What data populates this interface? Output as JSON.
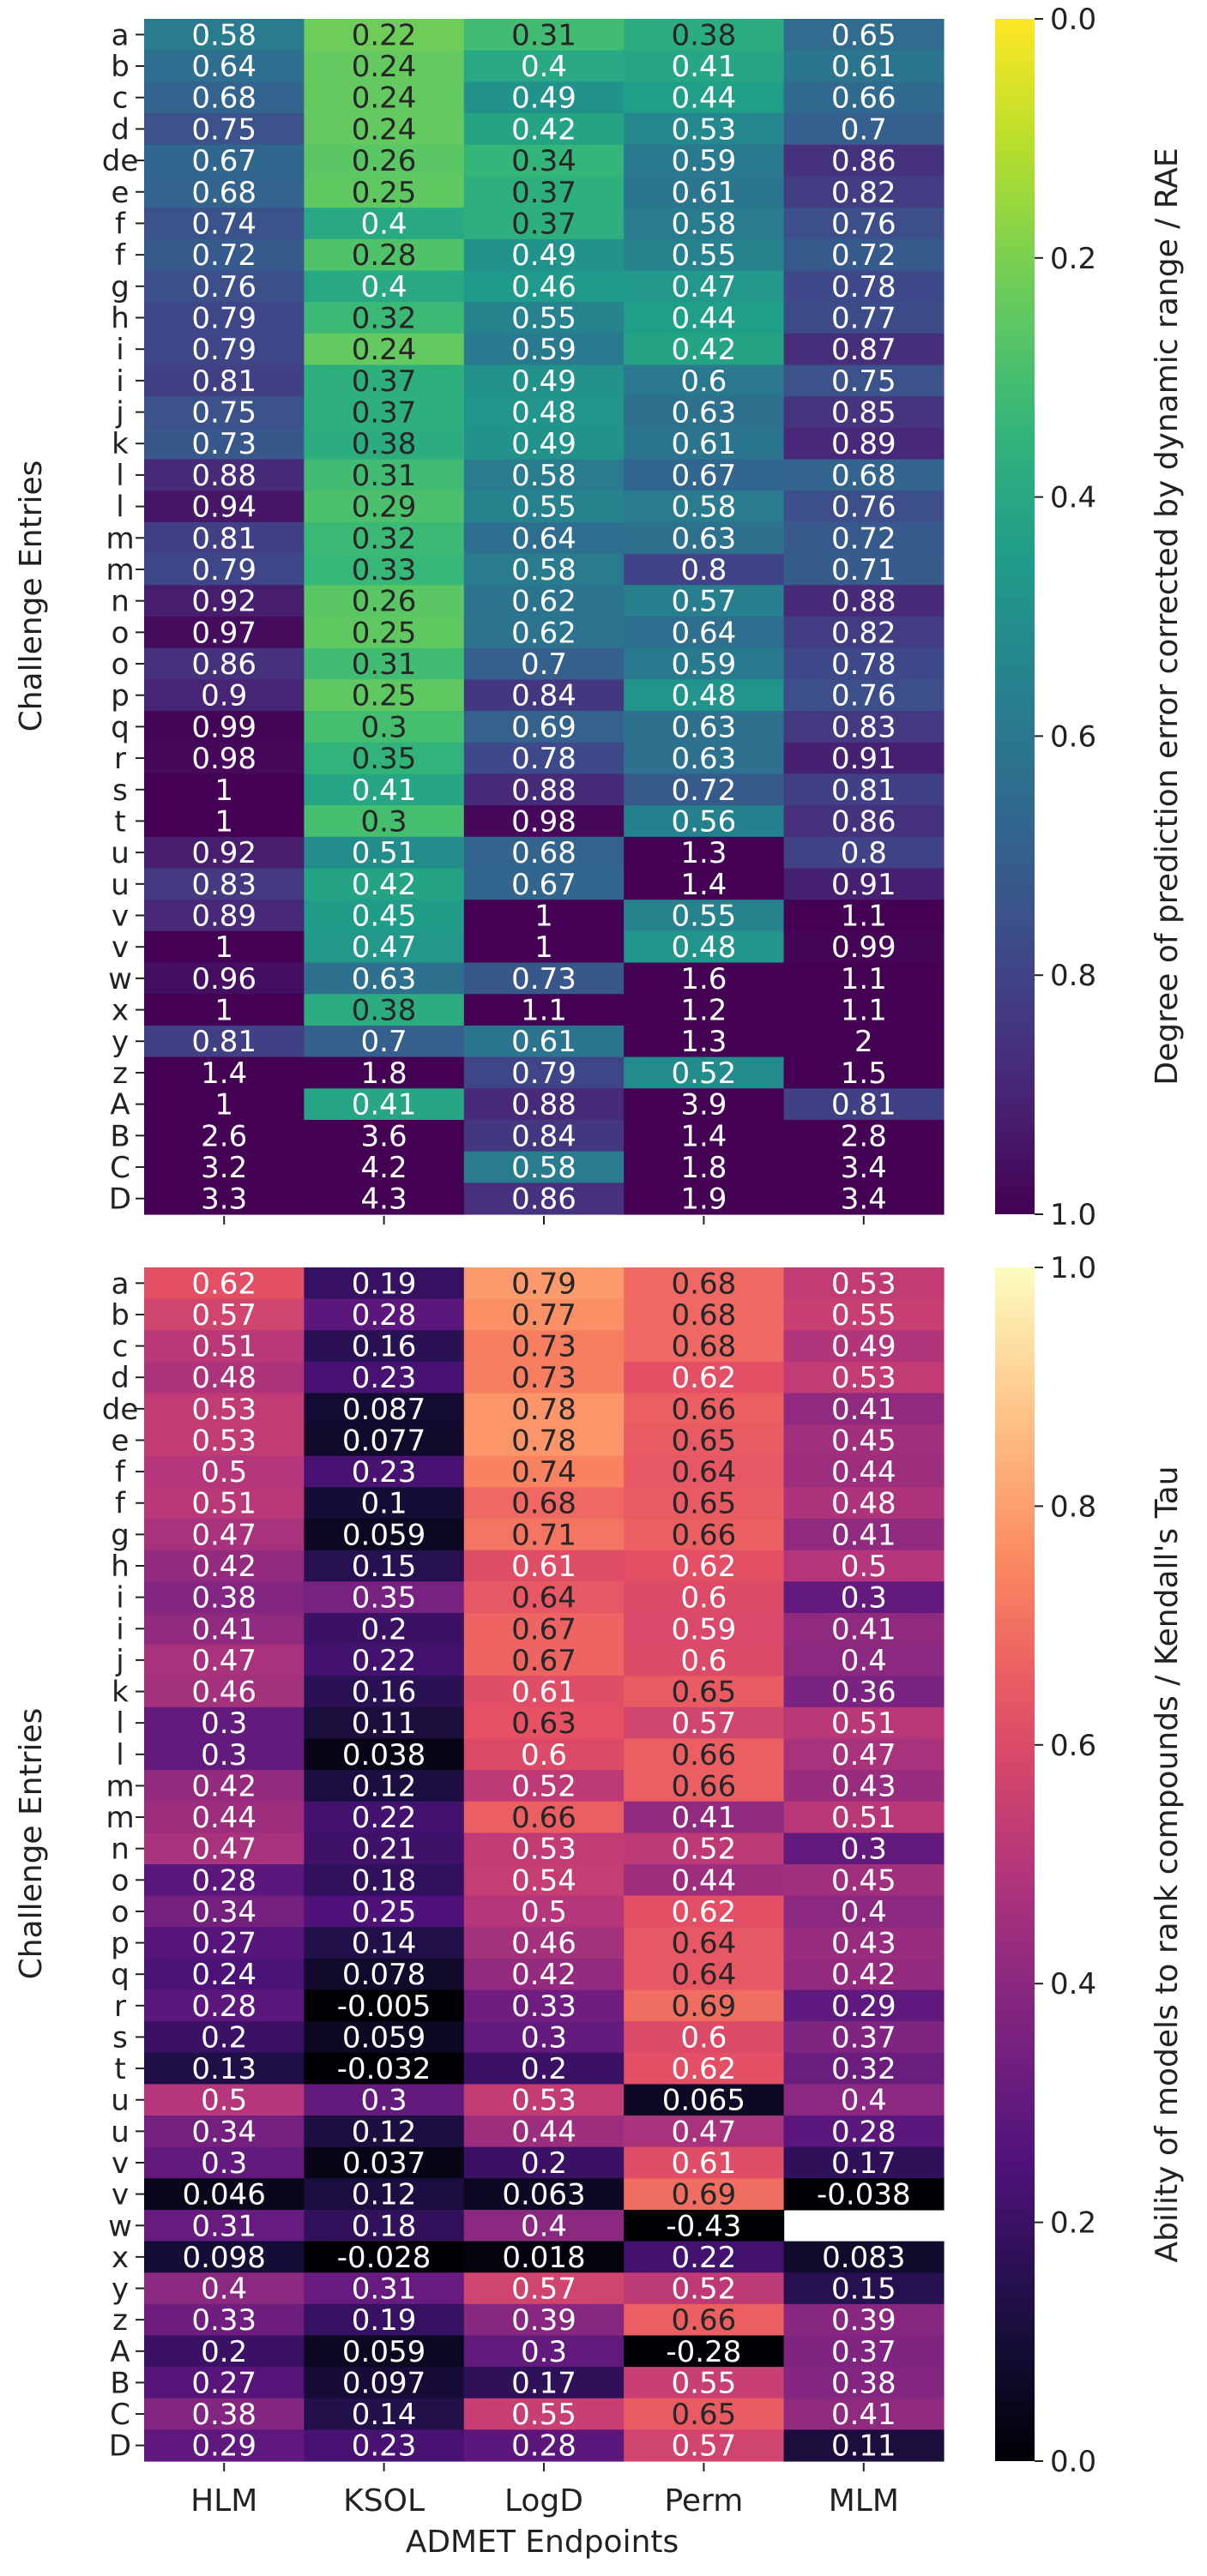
{
  "figure": {
    "xlabel": "ADMET Endpoints",
    "ylabel": "Challenge Entries"
  },
  "chart_data": [
    {
      "type": "heatmap",
      "name": "rae",
      "title": "",
      "xlabel": "",
      "ylabel": "Challenge Entries",
      "columns": [
        "HLM",
        "KSOL",
        "LogD",
        "Perm",
        "MLM"
      ],
      "rows": [
        "a",
        "b",
        "c",
        "d",
        "de",
        "e",
        "f",
        "f",
        "g",
        "h",
        "i",
        "i",
        "j",
        "k",
        "l",
        "l",
        "m",
        "m",
        "n",
        "o",
        "o",
        "p",
        "q",
        "r",
        "s",
        "t",
        "u",
        "u",
        "v",
        "v",
        "w",
        "x",
        "y",
        "z",
        "A",
        "B",
        "C",
        "D"
      ],
      "values": [
        [
          0.58,
          0.22,
          0.31,
          0.38,
          0.65
        ],
        [
          0.64,
          0.24,
          0.4,
          0.41,
          0.61
        ],
        [
          0.68,
          0.24,
          0.49,
          0.44,
          0.66
        ],
        [
          0.75,
          0.24,
          0.42,
          0.53,
          0.7
        ],
        [
          0.67,
          0.26,
          0.34,
          0.59,
          0.86
        ],
        [
          0.68,
          0.25,
          0.37,
          0.61,
          0.82
        ],
        [
          0.74,
          0.4,
          0.37,
          0.58,
          0.76
        ],
        [
          0.72,
          0.28,
          0.49,
          0.55,
          0.72
        ],
        [
          0.76,
          0.4,
          0.46,
          0.47,
          0.78
        ],
        [
          0.79,
          0.32,
          0.55,
          0.44,
          0.77
        ],
        [
          0.79,
          0.24,
          0.59,
          0.42,
          0.87
        ],
        [
          0.81,
          0.37,
          0.49,
          0.6,
          0.75
        ],
        [
          0.75,
          0.37,
          0.48,
          0.63,
          0.85
        ],
        [
          0.73,
          0.38,
          0.49,
          0.61,
          0.89
        ],
        [
          0.88,
          0.31,
          0.58,
          0.67,
          0.68
        ],
        [
          0.94,
          0.29,
          0.55,
          0.58,
          0.76
        ],
        [
          0.81,
          0.32,
          0.64,
          0.63,
          0.72
        ],
        [
          0.79,
          0.33,
          0.58,
          0.8,
          0.71
        ],
        [
          0.92,
          0.26,
          0.62,
          0.57,
          0.88
        ],
        [
          0.97,
          0.25,
          0.62,
          0.64,
          0.82
        ],
        [
          0.86,
          0.31,
          0.7,
          0.59,
          0.78
        ],
        [
          0.9,
          0.25,
          0.84,
          0.48,
          0.76
        ],
        [
          0.99,
          0.3,
          0.69,
          0.63,
          0.83
        ],
        [
          0.98,
          0.35,
          0.78,
          0.63,
          0.91
        ],
        [
          1,
          0.41,
          0.88,
          0.72,
          0.81
        ],
        [
          1,
          0.3,
          0.98,
          0.56,
          0.86
        ],
        [
          0.92,
          0.51,
          0.68,
          1.3,
          0.8
        ],
        [
          0.83,
          0.42,
          0.67,
          1.4,
          0.91
        ],
        [
          0.89,
          0.45,
          1,
          0.55,
          1.1
        ],
        [
          1,
          0.47,
          1,
          0.48,
          0.99
        ],
        [
          0.96,
          0.63,
          0.73,
          1.6,
          1.1
        ],
        [
          1,
          0.38,
          1.1,
          1.2,
          1.1
        ],
        [
          0.81,
          0.7,
          0.61,
          1.3,
          2
        ],
        [
          1.4,
          1.8,
          0.79,
          0.52,
          1.5
        ],
        [
          1,
          0.41,
          0.88,
          3.9,
          0.81
        ],
        [
          2.6,
          3.6,
          0.84,
          1.4,
          2.8
        ],
        [
          3.2,
          4.2,
          0.58,
          1.8,
          3.4
        ],
        [
          3.3,
          4.3,
          0.86,
          1.9,
          3.4
        ]
      ],
      "colormap": "viridis_r",
      "vmin": 0.0,
      "vmax": 1.0,
      "colorbar": {
        "label": "Degree of prediction error corrected by dynamic range / RAE",
        "ticks": [
          "0.0",
          "0.2",
          "0.4",
          "0.6",
          "0.8",
          "1.0"
        ],
        "direction": "top-to-bottom"
      },
      "show_xticklabels": false
    },
    {
      "type": "heatmap",
      "name": "tau",
      "title": "",
      "xlabel": "ADMET Endpoints",
      "ylabel": "Challenge Entries",
      "columns": [
        "HLM",
        "KSOL",
        "LogD",
        "Perm",
        "MLM"
      ],
      "rows": [
        "a",
        "b",
        "c",
        "d",
        "de",
        "e",
        "f",
        "f",
        "g",
        "h",
        "i",
        "i",
        "j",
        "k",
        "l",
        "l",
        "m",
        "m",
        "n",
        "o",
        "o",
        "p",
        "q",
        "r",
        "s",
        "t",
        "u",
        "u",
        "v",
        "v",
        "w",
        "x",
        "y",
        "z",
        "A",
        "B",
        "C",
        "D"
      ],
      "values": [
        [
          0.62,
          0.19,
          0.79,
          0.68,
          0.53
        ],
        [
          0.57,
          0.28,
          0.77,
          0.68,
          0.55
        ],
        [
          0.51,
          0.16,
          0.73,
          0.68,
          0.49
        ],
        [
          0.48,
          0.23,
          0.73,
          0.62,
          0.53
        ],
        [
          0.53,
          0.087,
          0.78,
          0.66,
          0.41
        ],
        [
          0.53,
          0.077,
          0.78,
          0.65,
          0.45
        ],
        [
          0.5,
          0.23,
          0.74,
          0.64,
          0.44
        ],
        [
          0.51,
          0.1,
          0.68,
          0.65,
          0.48
        ],
        [
          0.47,
          0.059,
          0.71,
          0.66,
          0.41
        ],
        [
          0.42,
          0.15,
          0.61,
          0.62,
          0.5
        ],
        [
          0.38,
          0.35,
          0.64,
          0.6,
          0.3
        ],
        [
          0.41,
          0.2,
          0.67,
          0.59,
          0.41
        ],
        [
          0.47,
          0.22,
          0.67,
          0.6,
          0.4
        ],
        [
          0.46,
          0.16,
          0.61,
          0.65,
          0.36
        ],
        [
          0.3,
          0.11,
          0.63,
          0.57,
          0.51
        ],
        [
          0.3,
          0.038,
          0.6,
          0.66,
          0.47
        ],
        [
          0.42,
          0.12,
          0.52,
          0.66,
          0.43
        ],
        [
          0.44,
          0.22,
          0.66,
          0.41,
          0.51
        ],
        [
          0.47,
          0.21,
          0.53,
          0.52,
          0.3
        ],
        [
          0.28,
          0.18,
          0.54,
          0.44,
          0.45
        ],
        [
          0.34,
          0.25,
          0.5,
          0.62,
          0.4
        ],
        [
          0.27,
          0.14,
          0.46,
          0.64,
          0.43
        ],
        [
          0.24,
          0.078,
          0.42,
          0.64,
          0.42
        ],
        [
          0.28,
          -0.005,
          0.33,
          0.69,
          0.29
        ],
        [
          0.2,
          0.059,
          0.3,
          0.6,
          0.37
        ],
        [
          0.13,
          -0.032,
          0.2,
          0.62,
          0.32
        ],
        [
          0.5,
          0.3,
          0.53,
          0.065,
          0.4
        ],
        [
          0.34,
          0.12,
          0.44,
          0.47,
          0.28
        ],
        [
          0.3,
          0.037,
          0.2,
          0.61,
          0.17
        ],
        [
          0.046,
          0.12,
          0.063,
          0.69,
          -0.038
        ],
        [
          0.31,
          0.18,
          0.4,
          -0.43,
          null
        ],
        [
          0.098,
          -0.028,
          0.018,
          0.22,
          0.083
        ],
        [
          0.4,
          0.31,
          0.57,
          0.52,
          0.15
        ],
        [
          0.33,
          0.19,
          0.39,
          0.66,
          0.39
        ],
        [
          0.2,
          0.059,
          0.3,
          -0.28,
          0.37
        ],
        [
          0.27,
          0.097,
          0.17,
          0.55,
          0.38
        ],
        [
          0.38,
          0.14,
          0.55,
          0.65,
          0.41
        ],
        [
          0.29,
          0.23,
          0.28,
          0.57,
          0.11
        ]
      ],
      "colormap": "magma",
      "vmin": 0.0,
      "vmax": 1.0,
      "colorbar": {
        "label": "Ability of models to rank compounds / Kendall's Tau",
        "ticks": [
          "1.0",
          "0.8",
          "0.6",
          "0.4",
          "0.2",
          "0.0"
        ],
        "direction": "bottom-to-top"
      },
      "show_xticklabels": true
    }
  ]
}
